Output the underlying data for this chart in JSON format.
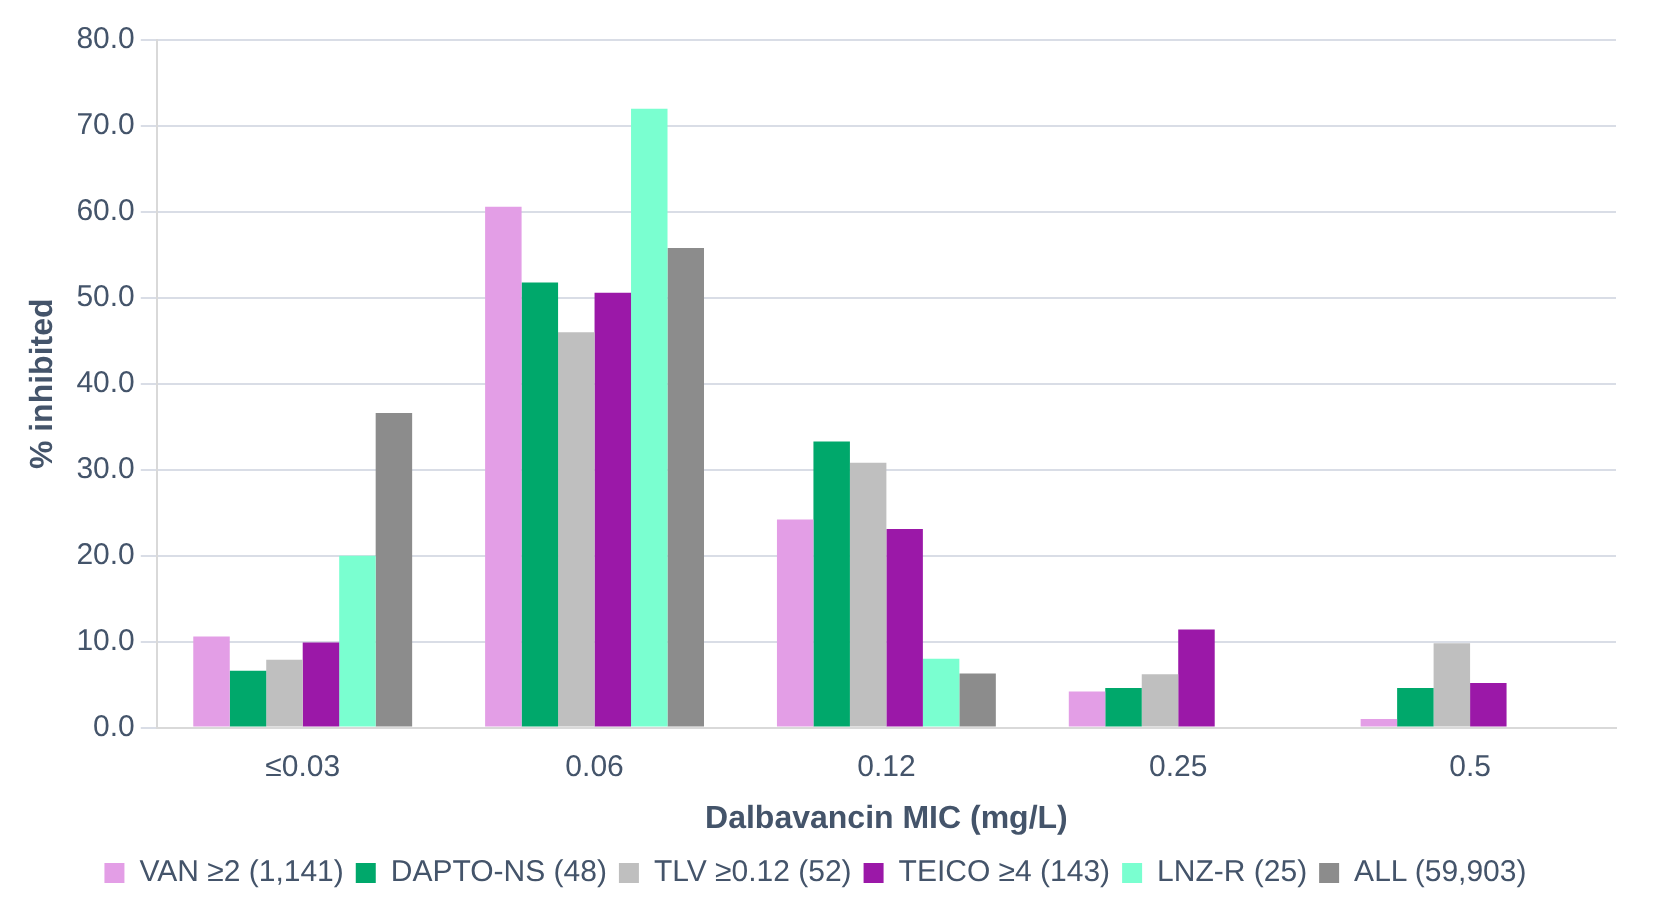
{
  "chart_data": {
    "type": "bar",
    "xlabel": "Dalbavancin MIC (mg/L)",
    "ylabel": "% inhibited",
    "categories": [
      "≤0.03",
      "0.06",
      "0.12",
      "0.25",
      "0.5"
    ],
    "series": [
      {
        "name": "VAN ≥2 (1,141)",
        "color": "#e39ee6",
        "values": [
          10.6,
          60.6,
          24.2,
          4.2,
          1.0
        ]
      },
      {
        "name": "DAPTO-NS (48)",
        "color": "#00a86b",
        "values": [
          6.6,
          51.8,
          33.3,
          4.6,
          4.6
        ]
      },
      {
        "name": "TLV ≥0.12 (52)",
        "color": "#bfbfbf",
        "values": [
          7.9,
          46.0,
          30.8,
          6.2,
          9.8
        ]
      },
      {
        "name": "TEICO ≥4 (143)",
        "color": "#9b18a8",
        "values": [
          9.9,
          50.6,
          23.1,
          11.4,
          5.2
        ]
      },
      {
        "name": "LNZ-R (25)",
        "color": "#7affd0",
        "values": [
          20.0,
          72.0,
          8.0,
          0,
          0
        ]
      },
      {
        "name": "ALL (59,903)",
        "color": "#8c8c8c",
        "values": [
          36.6,
          55.8,
          6.3,
          0,
          0
        ]
      }
    ],
    "ylim": [
      0,
      80
    ],
    "yticks": [
      {
        "value": 0,
        "label": "0.0"
      },
      {
        "value": 10,
        "label": "10.0"
      },
      {
        "value": 20,
        "label": "20.0"
      },
      {
        "value": 30,
        "label": "30.0"
      },
      {
        "value": 40,
        "label": "40.0"
      },
      {
        "value": 50,
        "label": "50.0"
      },
      {
        "value": 60,
        "label": "60.0"
      },
      {
        "value": 70,
        "label": "70.0"
      },
      {
        "value": 80,
        "label": "80.0"
      }
    ],
    "grid": "y",
    "legend": "bottom"
  }
}
